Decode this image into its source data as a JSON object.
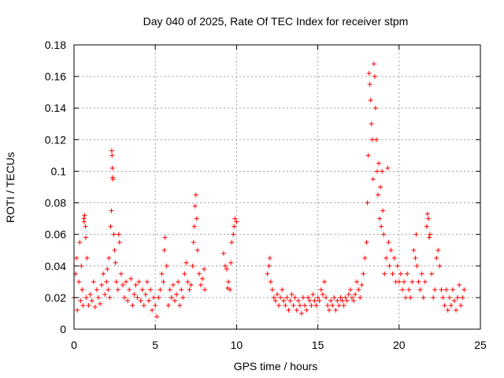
{
  "chart_data": {
    "type": "scatter",
    "title": "Day 040 of 2025, Rate Of TEC Index for receiver stpm",
    "xlabel": "GPS time / hours",
    "ylabel": "ROTI / TECUs",
    "xlim": [
      0,
      25
    ],
    "ylim": [
      0,
      0.18
    ],
    "xticks": [
      "0",
      "5",
      "10",
      "15",
      "20",
      "25"
    ],
    "yticks": [
      "0",
      "0.02",
      "0.04",
      "0.06",
      "0.08",
      "0.1",
      "0.12",
      "0.14",
      "0.16",
      "0.18"
    ],
    "grid": true,
    "marker": "+",
    "color": "#ff0000",
    "series": [
      {
        "points": [
          [
            0.0,
            0.02
          ],
          [
            0.1,
            0.035
          ],
          [
            0.15,
            0.045
          ],
          [
            0.2,
            0.012
          ],
          [
            0.3,
            0.03
          ],
          [
            0.35,
            0.055
          ],
          [
            0.4,
            0.018
          ],
          [
            0.45,
            0.04
          ],
          [
            0.5,
            0.025
          ],
          [
            0.55,
            0.015
          ],
          [
            0.6,
            0.07
          ],
          [
            0.62,
            0.068
          ],
          [
            0.65,
            0.072
          ],
          [
            0.7,
            0.065
          ],
          [
            0.72,
            0.058
          ],
          [
            0.75,
            0.02
          ],
          [
            0.8,
            0.045
          ],
          [
            0.9,
            0.015
          ],
          [
            1.0,
            0.022
          ],
          [
            1.1,
            0.018
          ],
          [
            1.2,
            0.03
          ],
          [
            1.3,
            0.014
          ],
          [
            1.4,
            0.025
          ],
          [
            1.5,
            0.02
          ],
          [
            1.6,
            0.016
          ],
          [
            1.7,
            0.028
          ],
          [
            1.8,
            0.035
          ],
          [
            1.9,
            0.022
          ],
          [
            2.0,
            0.03
          ],
          [
            2.05,
            0.038
          ],
          [
            2.1,
            0.025
          ],
          [
            2.15,
            0.045
          ],
          [
            2.2,
            0.02
          ],
          [
            2.25,
            0.065
          ],
          [
            2.3,
            0.075
          ],
          [
            2.32,
            0.113
          ],
          [
            2.34,
            0.11
          ],
          [
            2.36,
            0.102
          ],
          [
            2.38,
            0.096
          ],
          [
            2.4,
            0.095
          ],
          [
            2.45,
            0.06
          ],
          [
            2.5,
            0.05
          ],
          [
            2.55,
            0.042
          ],
          [
            2.6,
            0.03
          ],
          [
            2.7,
            0.025
          ],
          [
            2.75,
            0.06
          ],
          [
            2.8,
            0.055
          ],
          [
            2.9,
            0.035
          ],
          [
            3.0,
            0.028
          ],
          [
            3.1,
            0.02
          ],
          [
            3.2,
            0.03
          ],
          [
            3.3,
            0.018
          ],
          [
            3.4,
            0.025
          ],
          [
            3.5,
            0.032
          ],
          [
            3.6,
            0.015
          ],
          [
            3.7,
            0.022
          ],
          [
            3.8,
            0.028
          ],
          [
            3.9,
            0.02
          ],
          [
            4.0,
            0.03
          ],
          [
            4.1,
            0.018
          ],
          [
            4.2,
            0.025
          ],
          [
            4.3,
            0.015
          ],
          [
            4.4,
            0.022
          ],
          [
            4.5,
            0.03
          ],
          [
            4.6,
            0.018
          ],
          [
            4.7,
            0.025
          ],
          [
            4.8,
            0.012
          ],
          [
            4.9,
            0.02
          ],
          [
            5.0,
            0.015
          ],
          [
            5.1,
            0.008
          ],
          [
            5.2,
            0.02
          ],
          [
            5.3,
            0.025
          ],
          [
            5.4,
            0.035
          ],
          [
            5.5,
            0.03
          ],
          [
            5.55,
            0.05
          ],
          [
            5.6,
            0.058
          ],
          [
            5.7,
            0.04
          ],
          [
            5.8,
            0.015
          ],
          [
            5.9,
            0.025
          ],
          [
            6.0,
            0.02
          ],
          [
            6.1,
            0.028
          ],
          [
            6.2,
            0.018
          ],
          [
            6.3,
            0.022
          ],
          [
            6.4,
            0.03
          ],
          [
            6.5,
            0.015
          ],
          [
            6.6,
            0.025
          ],
          [
            6.7,
            0.02
          ],
          [
            6.8,
            0.035
          ],
          [
            6.9,
            0.042
          ],
          [
            7.0,
            0.03
          ],
          [
            7.1,
            0.025
          ],
          [
            7.2,
            0.028
          ],
          [
            7.3,
            0.04
          ],
          [
            7.35,
            0.055
          ],
          [
            7.4,
            0.065
          ],
          [
            7.45,
            0.078
          ],
          [
            7.5,
            0.085
          ],
          [
            7.55,
            0.07
          ],
          [
            7.6,
            0.05
          ],
          [
            7.7,
            0.035
          ],
          [
            7.8,
            0.028
          ],
          [
            7.9,
            0.032
          ],
          [
            8.0,
            0.038
          ],
          [
            8.05,
            0.025
          ],
          [
            9.2,
            0.048
          ],
          [
            9.3,
            0.04
          ],
          [
            9.4,
            0.038
          ],
          [
            9.45,
            0.026
          ],
          [
            9.5,
            0.03
          ],
          [
            9.6,
            0.025
          ],
          [
            9.65,
            0.042
          ],
          [
            9.7,
            0.055
          ],
          [
            9.8,
            0.06
          ],
          [
            9.85,
            0.065
          ],
          [
            9.9,
            0.07
          ],
          [
            10.0,
            0.068
          ],
          [
            11.9,
            0.035
          ],
          [
            12.0,
            0.04
          ],
          [
            12.05,
            0.045
          ],
          [
            12.1,
            0.03
          ],
          [
            12.2,
            0.025
          ],
          [
            12.3,
            0.02
          ],
          [
            12.4,
            0.018
          ],
          [
            12.5,
            0.022
          ],
          [
            12.6,
            0.015
          ],
          [
            12.7,
            0.02
          ],
          [
            12.8,
            0.025
          ],
          [
            12.9,
            0.018
          ],
          [
            13.0,
            0.015
          ],
          [
            13.1,
            0.02
          ],
          [
            13.2,
            0.012
          ],
          [
            13.3,
            0.018
          ],
          [
            13.4,
            0.022
          ],
          [
            13.5,
            0.015
          ],
          [
            13.6,
            0.02
          ],
          [
            13.7,
            0.012
          ],
          [
            13.8,
            0.018
          ],
          [
            13.9,
            0.015
          ],
          [
            14.0,
            0.01
          ],
          [
            14.1,
            0.02
          ],
          [
            14.2,
            0.015
          ],
          [
            14.3,
            0.012
          ],
          [
            14.4,
            0.02
          ],
          [
            14.5,
            0.018
          ],
          [
            14.6,
            0.015
          ],
          [
            14.7,
            0.022
          ],
          [
            14.8,
            0.018
          ],
          [
            14.9,
            0.015
          ],
          [
            15.0,
            0.02
          ],
          [
            15.1,
            0.018
          ],
          [
            15.2,
            0.025
          ],
          [
            15.3,
            0.022
          ],
          [
            15.4,
            0.03
          ],
          [
            15.5,
            0.02
          ],
          [
            15.6,
            0.015
          ],
          [
            15.7,
            0.012
          ],
          [
            15.8,
            0.018
          ],
          [
            15.9,
            0.015
          ],
          [
            16.0,
            0.02
          ],
          [
            16.1,
            0.012
          ],
          [
            16.2,
            0.018
          ],
          [
            16.3,
            0.015
          ],
          [
            16.4,
            0.02
          ],
          [
            16.5,
            0.018
          ],
          [
            16.6,
            0.015
          ],
          [
            16.7,
            0.02
          ],
          [
            16.8,
            0.018
          ],
          [
            16.9,
            0.022
          ],
          [
            17.0,
            0.025
          ],
          [
            17.1,
            0.02
          ],
          [
            17.2,
            0.018
          ],
          [
            17.3,
            0.022
          ],
          [
            17.4,
            0.03
          ],
          [
            17.5,
            0.025
          ],
          [
            17.6,
            0.02
          ],
          [
            17.7,
            0.028
          ],
          [
            17.8,
            0.035
          ],
          [
            17.9,
            0.045
          ],
          [
            18.0,
            0.055
          ],
          [
            18.05,
            0.08
          ],
          [
            18.1,
            0.11
          ],
          [
            18.15,
            0.162
          ],
          [
            18.2,
            0.155
          ],
          [
            18.25,
            0.145
          ],
          [
            18.3,
            0.13
          ],
          [
            18.35,
            0.12
          ],
          [
            18.4,
            0.095
          ],
          [
            18.45,
            0.168
          ],
          [
            18.5,
            0.16
          ],
          [
            18.55,
            0.14
          ],
          [
            18.6,
            0.12
          ],
          [
            18.65,
            0.1
          ],
          [
            18.7,
            0.085
          ],
          [
            18.75,
            0.105
          ],
          [
            18.8,
            0.07
          ],
          [
            18.85,
            0.09
          ],
          [
            18.9,
            0.065
          ],
          [
            18.95,
            0.1
          ],
          [
            19.0,
            0.075
          ],
          [
            19.05,
            0.06
          ],
          [
            19.1,
            0.035
          ],
          [
            19.2,
            0.045
          ],
          [
            19.3,
            0.102
          ],
          [
            19.35,
            0.055
          ],
          [
            19.4,
            0.04
          ],
          [
            19.5,
            0.05
          ],
          [
            19.6,
            0.035
          ],
          [
            19.7,
            0.045
          ],
          [
            19.8,
            0.03
          ],
          [
            19.9,
            0.04
          ],
          [
            20.0,
            0.03
          ],
          [
            20.1,
            0.035
          ],
          [
            20.2,
            0.025
          ],
          [
            20.3,
            0.03
          ],
          [
            20.4,
            0.02
          ],
          [
            20.5,
            0.035
          ],
          [
            20.6,
            0.025
          ],
          [
            20.7,
            0.02
          ],
          [
            20.8,
            0.03
          ],
          [
            20.9,
            0.05
          ],
          [
            21.0,
            0.045
          ],
          [
            21.05,
            0.06
          ],
          [
            21.1,
            0.04
          ],
          [
            21.2,
            0.03
          ],
          [
            21.3,
            0.025
          ],
          [
            21.4,
            0.035
          ],
          [
            21.5,
            0.02
          ],
          [
            21.6,
            0.03
          ],
          [
            21.7,
            0.065
          ],
          [
            21.75,
            0.073
          ],
          [
            21.8,
            0.07
          ],
          [
            21.85,
            0.058
          ],
          [
            21.9,
            0.06
          ],
          [
            22.0,
            0.035
          ],
          [
            22.1,
            0.02
          ],
          [
            22.2,
            0.025
          ],
          [
            22.3,
            0.045
          ],
          [
            22.4,
            0.05
          ],
          [
            22.5,
            0.04
          ],
          [
            22.6,
            0.025
          ],
          [
            22.7,
            0.02
          ],
          [
            22.8,
            0.015
          ],
          [
            22.9,
            0.025
          ],
          [
            23.0,
            0.012
          ],
          [
            23.1,
            0.02
          ],
          [
            23.2,
            0.015
          ],
          [
            23.3,
            0.025
          ],
          [
            23.4,
            0.018
          ],
          [
            23.5,
            0.012
          ],
          [
            23.6,
            0.02
          ],
          [
            23.7,
            0.028
          ],
          [
            23.8,
            0.015
          ],
          [
            23.9,
            0.02
          ],
          [
            24.0,
            0.025
          ]
        ]
      }
    ]
  }
}
